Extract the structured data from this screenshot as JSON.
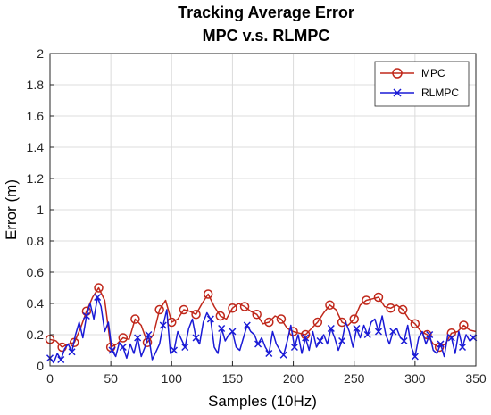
{
  "chart_data": {
    "type": "line",
    "title": "Tracking Average Error",
    "subtitle": "MPC v.s. RLMPC",
    "xlabel": "Samples (10Hz)",
    "ylabel": "Error (m)",
    "xlim": [
      0,
      350
    ],
    "ylim": [
      0,
      2
    ],
    "xticks": [
      0,
      50,
      100,
      150,
      200,
      250,
      300,
      350
    ],
    "yticks": [
      0,
      0.2,
      0.4,
      0.6,
      0.8,
      1,
      1.2,
      1.4,
      1.6,
      1.8,
      2
    ],
    "ytick_labels": [
      "0",
      "0.2",
      "0.4",
      "0.6",
      "0.8",
      "1",
      "1.2",
      "1.4",
      "1.6",
      "1.8",
      "2"
    ],
    "grid": true,
    "legend_position": "top-right",
    "series": [
      {
        "name": "MPC",
        "color": "#c0281b",
        "marker": "circle",
        "x": [
          0,
          5,
          10,
          15,
          20,
          25,
          30,
          35,
          40,
          45,
          50,
          55,
          60,
          65,
          70,
          75,
          80,
          85,
          90,
          95,
          100,
          105,
          110,
          115,
          120,
          125,
          130,
          135,
          140,
          145,
          150,
          155,
          160,
          165,
          170,
          175,
          180,
          185,
          190,
          195,
          200,
          205,
          210,
          215,
          220,
          225,
          230,
          235,
          240,
          245,
          250,
          255,
          260,
          265,
          270,
          275,
          280,
          285,
          290,
          295,
          300,
          305,
          310,
          315,
          320,
          325,
          330,
          335,
          340,
          345,
          350
        ],
        "values": [
          0.17,
          0.16,
          0.12,
          0.14,
          0.15,
          0.24,
          0.35,
          0.44,
          0.5,
          0.42,
          0.12,
          0.14,
          0.18,
          0.17,
          0.3,
          0.26,
          0.15,
          0.2,
          0.36,
          0.42,
          0.28,
          0.3,
          0.36,
          0.35,
          0.33,
          0.4,
          0.46,
          0.38,
          0.32,
          0.3,
          0.37,
          0.4,
          0.38,
          0.35,
          0.33,
          0.27,
          0.28,
          0.32,
          0.3,
          0.24,
          0.22,
          0.21,
          0.2,
          0.24,
          0.28,
          0.34,
          0.39,
          0.36,
          0.28,
          0.26,
          0.3,
          0.39,
          0.42,
          0.43,
          0.44,
          0.38,
          0.37,
          0.39,
          0.36,
          0.3,
          0.27,
          0.22,
          0.2,
          0.14,
          0.12,
          0.14,
          0.21,
          0.22,
          0.26,
          0.23,
          0.22
        ],
        "marker_x": [
          0,
          10,
          20,
          30,
          40,
          50,
          60,
          70,
          80,
          90,
          100,
          110,
          120,
          130,
          140,
          150,
          160,
          170,
          180,
          190,
          200,
          210,
          220,
          230,
          240,
          250,
          260,
          270,
          280,
          290,
          300,
          310,
          320,
          330,
          340
        ]
      },
      {
        "name": "RLMPC",
        "color": "#1a1ad6",
        "marker": "x",
        "x": [
          0,
          3,
          6,
          9,
          12,
          15,
          18,
          21,
          24,
          27,
          30,
          33,
          36,
          39,
          42,
          45,
          48,
          51,
          54,
          57,
          60,
          63,
          66,
          69,
          72,
          75,
          78,
          81,
          84,
          87,
          90,
          93,
          96,
          99,
          102,
          105,
          108,
          111,
          114,
          117,
          120,
          123,
          126,
          129,
          132,
          135,
          138,
          141,
          144,
          147,
          150,
          153,
          156,
          159,
          162,
          165,
          168,
          171,
          174,
          177,
          180,
          183,
          186,
          189,
          192,
          195,
          198,
          201,
          204,
          207,
          210,
          213,
          216,
          219,
          222,
          225,
          228,
          231,
          234,
          237,
          240,
          243,
          246,
          249,
          252,
          255,
          258,
          261,
          264,
          267,
          270,
          273,
          276,
          279,
          282,
          285,
          288,
          291,
          294,
          297,
          300,
          303,
          306,
          309,
          312,
          315,
          318,
          321,
          324,
          327,
          330,
          333,
          336,
          339,
          342,
          345,
          348,
          350
        ],
        "values": [
          0.05,
          0.02,
          0.08,
          0.04,
          0.11,
          0.14,
          0.09,
          0.2,
          0.28,
          0.18,
          0.32,
          0.4,
          0.3,
          0.44,
          0.38,
          0.22,
          0.28,
          0.1,
          0.06,
          0.15,
          0.12,
          0.05,
          0.14,
          0.08,
          0.18,
          0.06,
          0.12,
          0.2,
          0.04,
          0.09,
          0.14,
          0.26,
          0.36,
          0.08,
          0.1,
          0.22,
          0.17,
          0.12,
          0.24,
          0.3,
          0.18,
          0.14,
          0.28,
          0.34,
          0.3,
          0.12,
          0.08,
          0.24,
          0.16,
          0.2,
          0.22,
          0.12,
          0.1,
          0.18,
          0.26,
          0.22,
          0.2,
          0.14,
          0.18,
          0.12,
          0.08,
          0.22,
          0.14,
          0.1,
          0.07,
          0.16,
          0.26,
          0.12,
          0.2,
          0.08,
          0.18,
          0.1,
          0.22,
          0.12,
          0.16,
          0.2,
          0.14,
          0.24,
          0.18,
          0.1,
          0.16,
          0.28,
          0.22,
          0.12,
          0.24,
          0.18,
          0.26,
          0.2,
          0.28,
          0.3,
          0.22,
          0.32,
          0.2,
          0.14,
          0.22,
          0.24,
          0.18,
          0.16,
          0.26,
          0.12,
          0.06,
          0.18,
          0.22,
          0.14,
          0.2,
          0.1,
          0.08,
          0.14,
          0.06,
          0.2,
          0.18,
          0.08,
          0.22,
          0.12,
          0.2,
          0.16,
          0.18,
          0.2
        ],
        "marker_x": [
          0,
          9,
          18,
          30,
          39,
          51,
          60,
          72,
          81,
          93,
          102,
          111,
          120,
          132,
          141,
          150,
          162,
          171,
          180,
          192,
          201,
          210,
          222,
          231,
          240,
          252,
          261,
          270,
          282,
          291,
          300,
          312,
          321,
          330,
          339,
          348
        ]
      }
    ]
  }
}
